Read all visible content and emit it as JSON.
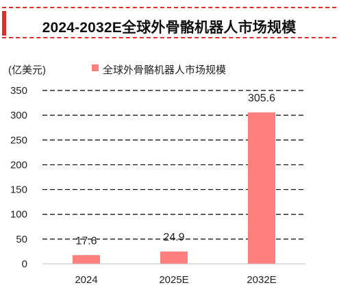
{
  "colors": {
    "accent": "#e32b2b",
    "bar": "#ff7f7f"
  },
  "chart_data": {
    "type": "bar",
    "title": "2024-2032E全球外骨骼机器人市场规模",
    "ylabel": "(亿美元)",
    "categories": [
      "2024",
      "2025E",
      "2032E"
    ],
    "series": [
      {
        "name": "全球外骨骼机器人市场规模",
        "values": [
          17.6,
          24.9,
          305.6
        ]
      }
    ],
    "data_labels": [
      "17.6",
      "24.9",
      "305.6"
    ],
    "yticks": [
      0,
      50,
      100,
      150,
      200,
      250,
      300,
      350
    ],
    "ylim": [
      0,
      350
    ],
    "grid": true,
    "legend_position": "top"
  }
}
